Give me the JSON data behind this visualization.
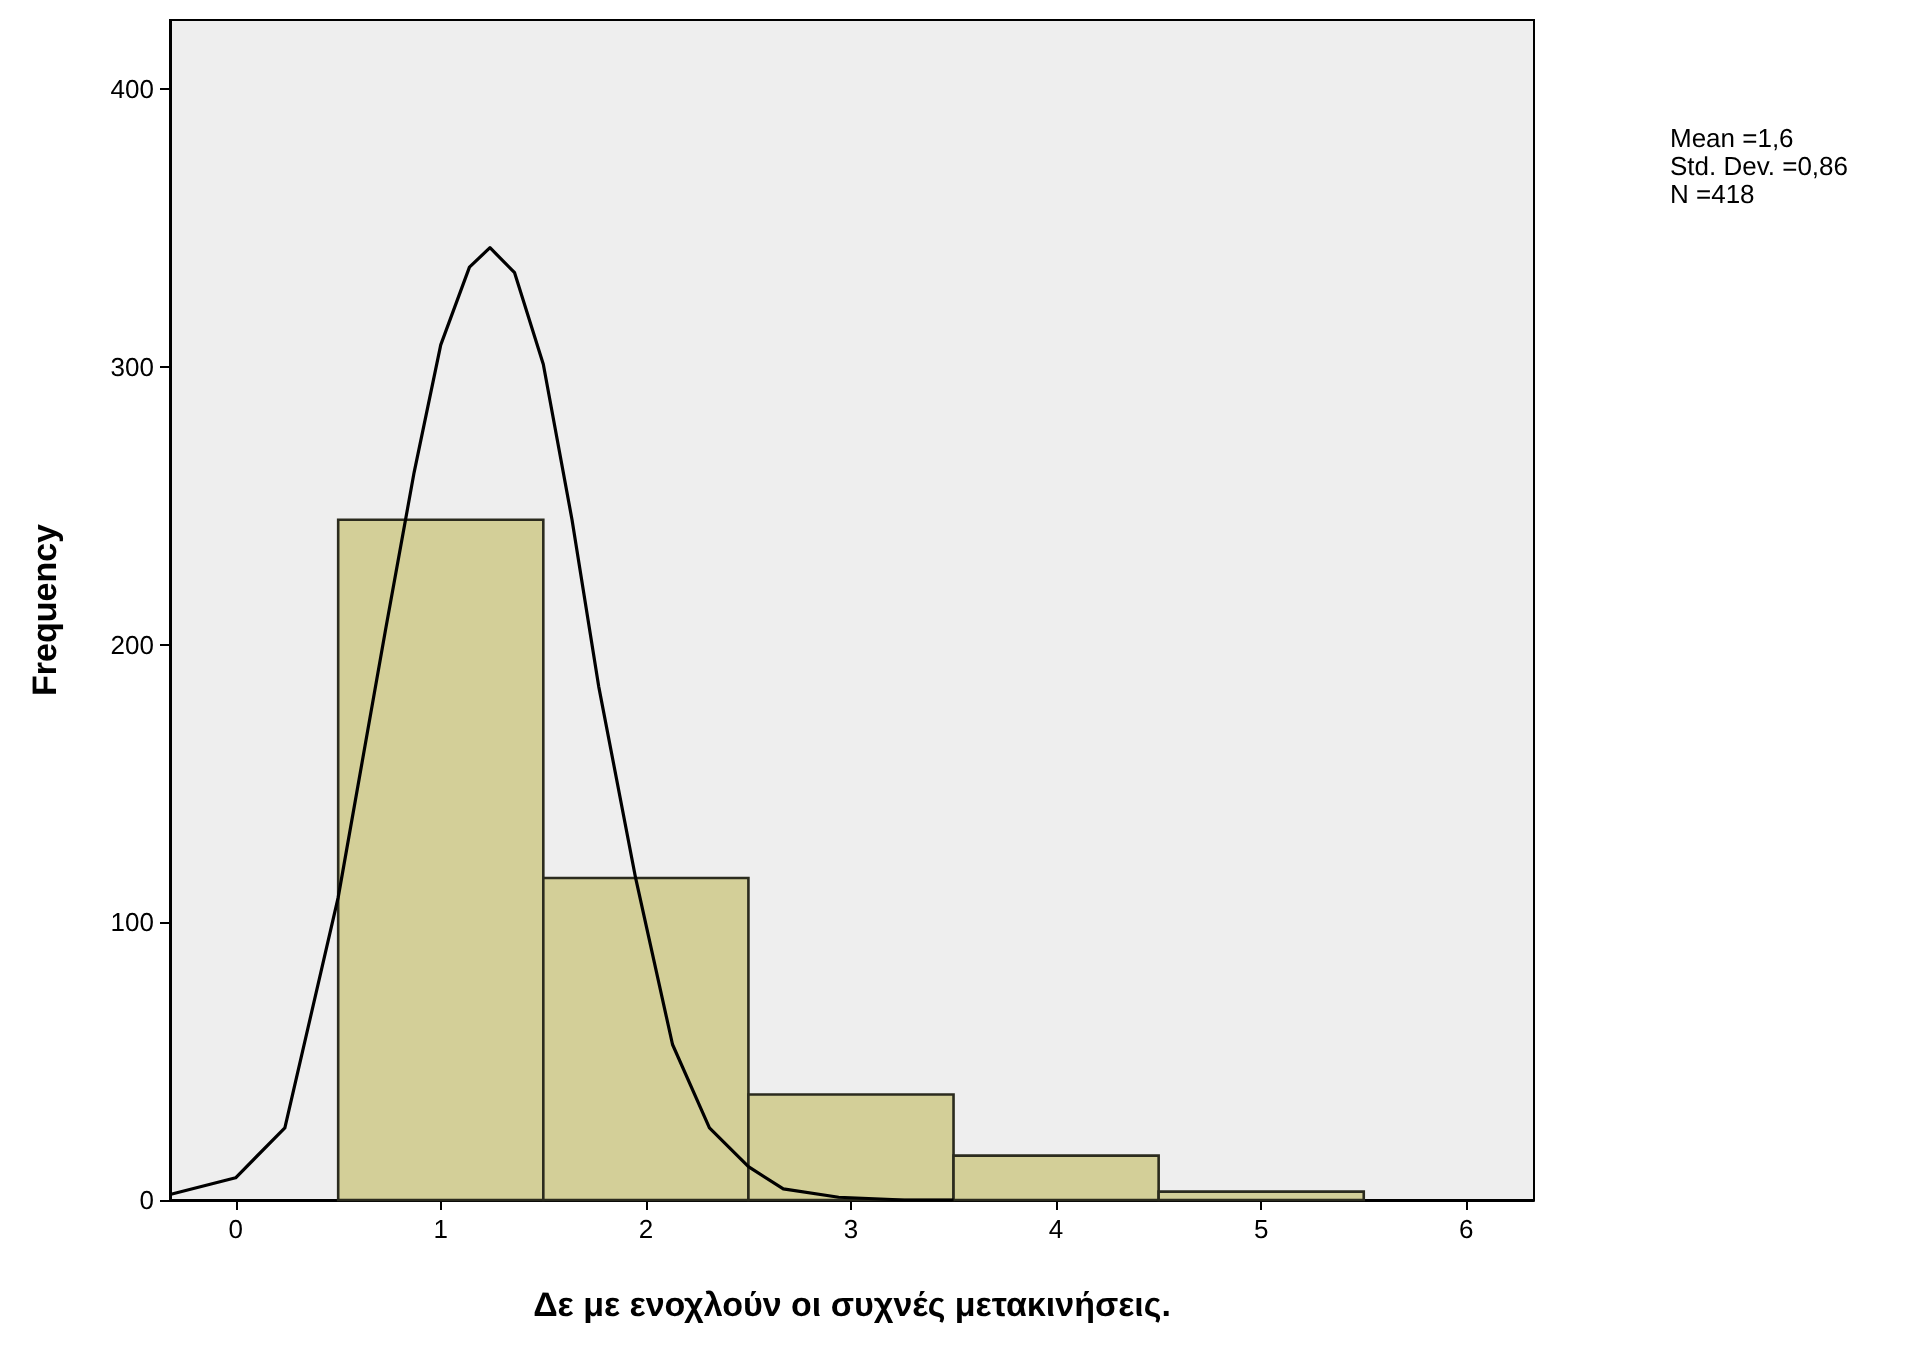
{
  "chart_data": {
    "type": "histogram",
    "xlabel": "Δε με ενοχλούν οι συχνές μετακινήσεις.",
    "ylabel": "Frequency",
    "bins": [
      0.5,
      1.5,
      2.5,
      3.5,
      4.5,
      5.5
    ],
    "values": [
      245,
      116,
      38,
      16,
      3
    ],
    "color": "#d3cf98",
    "series": [
      {
        "type": "line",
        "color": "#000000",
        "x": [
          -0.32,
          0,
          0.24,
          0.5,
          0.73,
          0.87,
          1.0,
          1.14,
          1.24,
          1.36,
          1.5,
          1.64,
          1.77,
          1.95,
          2.13,
          2.31,
          2.5,
          2.67,
          2.94,
          3.26,
          3.5
        ],
        "values": [
          2,
          8,
          26,
          109,
          205,
          262,
          308,
          336,
          343,
          334,
          301,
          245,
          185,
          116,
          56,
          26,
          12,
          4,
          1,
          0,
          0
        ]
      }
    ],
    "marker": "none",
    "grid": false,
    "xlim": [
      -0.32,
      6.33
    ],
    "xticks": [
      0,
      1,
      2,
      3,
      4,
      5,
      6
    ],
    "ylim": [
      0,
      425
    ],
    "yticks": [
      0,
      100,
      200,
      300,
      400
    ],
    "annotations": [
      "Mean =1,6\nStd. Dev. =0,86\nN =418"
    ]
  }
}
